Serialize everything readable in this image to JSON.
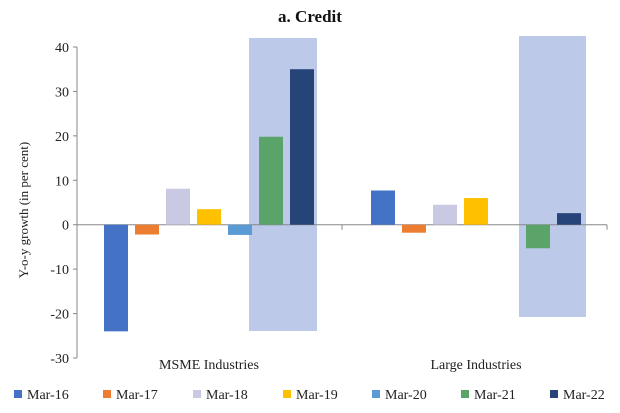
{
  "chart_data": {
    "type": "bar",
    "title": "a. Credit",
    "ylabel": "Y-o-y growth (in per cent)",
    "xlabel": "",
    "ylim": [
      -30,
      40
    ],
    "yticks": [
      -30,
      -20,
      -10,
      0,
      10,
      20,
      30,
      40
    ],
    "categories": [
      "MSME Industries",
      "Large Industries"
    ],
    "series": [
      {
        "name": "Mar-16",
        "color": "#4472c4",
        "values": [
          -24,
          7.7
        ]
      },
      {
        "name": "Mar-17",
        "color": "#ed7d31",
        "values": [
          -2.2,
          -1.8
        ]
      },
      {
        "name": "Mar-18",
        "color": "#c9c9e3",
        "values": [
          8.1,
          4.5
        ]
      },
      {
        "name": "Mar-19",
        "color": "#ffc000",
        "values": [
          3.5,
          6.0
        ]
      },
      {
        "name": "Mar-20",
        "color": "#5b9bd5",
        "values": [
          -2.3,
          0
        ]
      },
      {
        "name": "Mar-21",
        "color": "#5aa469",
        "values": [
          19.8,
          -5.3
        ]
      },
      {
        "name": "Mar-22",
        "color": "#264478",
        "values": [
          35,
          2.6
        ]
      }
    ],
    "highlight_color": "#b8c6e8",
    "grid": false,
    "legend_position": "bottom"
  }
}
